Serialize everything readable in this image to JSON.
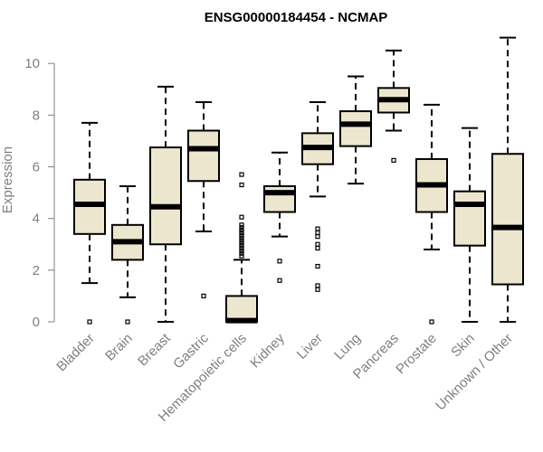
{
  "chart_data": {
    "type": "boxplot",
    "title": "ENSG00000184454 - NCMAP",
    "ylabel": "Expression",
    "xlabel": "",
    "ylim": [
      0,
      11
    ],
    "yticks": [
      0,
      2,
      4,
      6,
      8,
      10
    ],
    "box_fill": "#ede6cf",
    "categories": [
      {
        "name": "Bladder",
        "whisker_low": 1.5,
        "q1": 3.4,
        "median": 4.55,
        "q3": 5.5,
        "whisker_high": 7.7,
        "outliers": [
          0.0
        ]
      },
      {
        "name": "Brain",
        "whisker_low": 0.95,
        "q1": 2.4,
        "median": 3.1,
        "q3": 3.75,
        "whisker_high": 5.25,
        "outliers": [
          0.0
        ]
      },
      {
        "name": "Breast",
        "whisker_low": 0.0,
        "q1": 3.0,
        "median": 4.45,
        "q3": 6.75,
        "whisker_high": 9.1,
        "outliers": []
      },
      {
        "name": "Gastric",
        "whisker_low": 3.5,
        "q1": 5.45,
        "median": 6.7,
        "q3": 7.4,
        "whisker_high": 8.5,
        "outliers": [
          1.0
        ]
      },
      {
        "name": "Hematopoietic cells",
        "whisker_low": 0.0,
        "q1": 0.0,
        "median": 0.05,
        "q3": 1.0,
        "whisker_high": 2.4,
        "outliers": [
          2.55,
          2.65,
          2.75,
          2.85,
          2.95,
          3.05,
          3.15,
          3.25,
          3.35,
          3.45,
          3.55,
          3.65,
          3.75,
          4.05,
          5.3,
          5.7
        ]
      },
      {
        "name": "Kidney",
        "whisker_low": 3.3,
        "q1": 4.25,
        "median": 5.0,
        "q3": 5.25,
        "whisker_high": 6.55,
        "outliers": [
          1.6,
          2.35
        ]
      },
      {
        "name": "Liver",
        "whisker_low": 4.85,
        "q1": 6.1,
        "median": 6.75,
        "q3": 7.3,
        "whisker_high": 8.5,
        "outliers": [
          1.25,
          1.4,
          2.15,
          2.85,
          3.0,
          3.3,
          3.45,
          3.6
        ]
      },
      {
        "name": "Lung",
        "whisker_low": 5.35,
        "q1": 6.8,
        "median": 7.65,
        "q3": 8.15,
        "whisker_high": 9.5,
        "outliers": []
      },
      {
        "name": "Pancreas",
        "whisker_low": 7.4,
        "q1": 8.1,
        "median": 8.6,
        "q3": 9.05,
        "whisker_high": 10.5,
        "outliers": [
          6.25
        ]
      },
      {
        "name": "Prostate",
        "whisker_low": 2.8,
        "q1": 4.25,
        "median": 5.3,
        "q3": 6.3,
        "whisker_high": 8.4,
        "outliers": [
          0.0
        ]
      },
      {
        "name": "Skin",
        "whisker_low": 0.0,
        "q1": 2.95,
        "median": 4.55,
        "q3": 5.05,
        "whisker_high": 7.5,
        "outliers": []
      },
      {
        "name": "Unknown / Other",
        "whisker_low": 0.0,
        "q1": 1.45,
        "median": 3.65,
        "q3": 6.5,
        "whisker_high": 11.0,
        "outliers": []
      }
    ]
  }
}
